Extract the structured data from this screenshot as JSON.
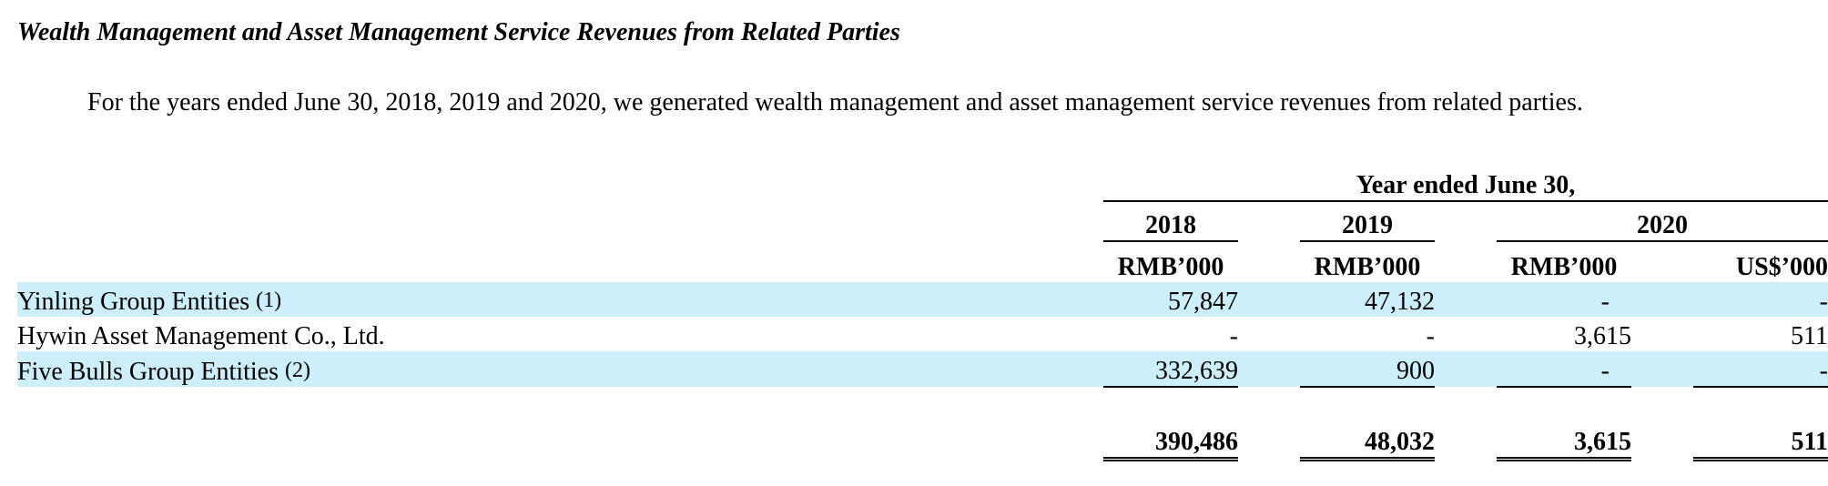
{
  "title": "Wealth Management and Asset Management Service Revenues from Related Parties",
  "intro": "For the years ended June 30, 2018, 2019 and 2020, we generated wealth management and asset management service revenues from related parties.",
  "table": {
    "period_header": "Year ended June 30,",
    "years": {
      "y2018": "2018",
      "y2019": "2019",
      "y2020": "2020"
    },
    "units": {
      "u2018": "RMB’000",
      "u2019": "RMB’000",
      "u2020_rmb": "RMB’000",
      "u2020_usd": "US$’000"
    },
    "rows": [
      {
        "label": "Yinling Group Entities",
        "note": "(1)",
        "v2018": "57,847",
        "v2019": "47,132",
        "v2020_rmb": "-",
        "v2020_usd": "-"
      },
      {
        "label": "Hywin Asset Management Co., Ltd.",
        "note": "",
        "v2018": "-",
        "v2019": "-",
        "v2020_rmb": "3,615",
        "v2020_usd": "511"
      },
      {
        "label": "Five Bulls Group Entities",
        "note": "(2)",
        "v2018": "332,639",
        "v2019": "900",
        "v2020_rmb": "-",
        "v2020_usd": "-"
      }
    ],
    "total": {
      "v2018": "390,486",
      "v2019": "48,032",
      "v2020_rmb": "3,615",
      "v2020_usd": "511"
    }
  }
}
